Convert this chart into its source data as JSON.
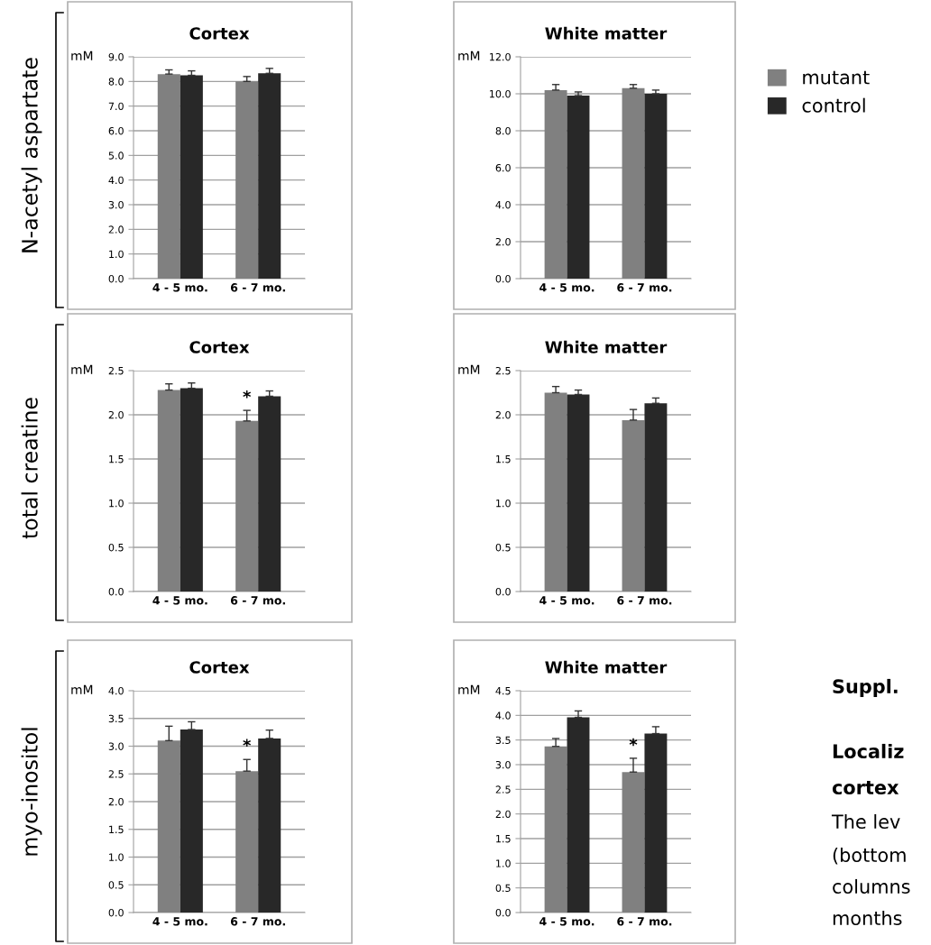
{
  "chart_data": [
    {
      "type": "bar",
      "title": "Cortex",
      "ylabel": "mM",
      "categories": [
        "4 - 5 mo.",
        "6 - 7 mo."
      ],
      "ylim": [
        0,
        9
      ],
      "yticks": [
        {
          "value": 0,
          "label": "0.0"
        },
        {
          "value": 1,
          "label": "1.0"
        },
        {
          "value": 2,
          "label": "2.0"
        },
        {
          "value": 3,
          "label": "3.0"
        },
        {
          "value": 4,
          "label": "4.0"
        },
        {
          "value": 5,
          "label": "5.0"
        },
        {
          "value": 6,
          "label": "6.0"
        },
        {
          "value": 7,
          "label": "7.0"
        },
        {
          "value": 8,
          "label": "8.0"
        },
        {
          "value": 9,
          "label": "9.0"
        }
      ],
      "grid": "y",
      "annotations": [
        "N-acetyl aspartate"
      ],
      "series": [
        {
          "color": "#808080",
          "values": [
            8.3,
            8.0
          ],
          "errors": [
            0.17,
            0.2
          ]
        },
        {
          "color": "#282828",
          "values": [
            8.25,
            8.33
          ],
          "errors": [
            0.18,
            0.2
          ]
        }
      ]
    },
    {
      "type": "bar",
      "title": "White matter",
      "ylabel": "mM",
      "categories": [
        "4 - 5 mo.",
        "6 - 7 mo."
      ],
      "ylim": [
        0,
        12
      ],
      "yticks": [
        {
          "value": 0,
          "label": "0.0"
        },
        {
          "value": 2,
          "label": "2.0"
        },
        {
          "value": 4,
          "label": "4.0"
        },
        {
          "value": 6,
          "label": "6.0"
        },
        {
          "value": 8,
          "label": "8.0"
        },
        {
          "value": 10,
          "label": "10.0"
        },
        {
          "value": 12,
          "label": "12.0"
        }
      ],
      "grid": "y",
      "legend": "right",
      "series": [
        {
          "name": "mutant",
          "color": "#808080",
          "values": [
            10.2,
            10.3
          ],
          "errors": [
            0.3,
            0.2
          ]
        },
        {
          "name": "control",
          "color": "#282828",
          "values": [
            9.9,
            10.0
          ],
          "errors": [
            0.2,
            0.2
          ]
        }
      ]
    },
    {
      "type": "bar",
      "title": "Cortex",
      "ylabel": "mM",
      "categories": [
        "4 - 5 mo.",
        "6 - 7 mo."
      ],
      "ylim": [
        0,
        2.5
      ],
      "yticks": [
        {
          "value": 0,
          "label": "0.0"
        },
        0.5,
        {
          "value": 1,
          "label": "1.0"
        },
        1.5,
        {
          "value": 2,
          "label": "2.0"
        },
        2.5
      ],
      "grid": "y",
      "annotations": [
        "total creatine",
        {
          "text": "*",
          "x": "6 - 7 mo.",
          "y": 2.1
        }
      ],
      "series": [
        {
          "color": "#808080",
          "values": [
            2.28,
            1.93
          ],
          "errors": [
            0.07,
            0.12
          ]
        },
        {
          "color": "#282828",
          "values": [
            2.3,
            2.21
          ],
          "errors": [
            0.06,
            0.06
          ]
        }
      ]
    },
    {
      "type": "bar",
      "title": "White matter",
      "ylabel": "mM",
      "categories": [
        "4 - 5 mo.",
        "6 - 7 mo."
      ],
      "ylim": [
        0,
        2.5
      ],
      "yticks": [
        {
          "value": 0,
          "label": "0.0"
        },
        0.5,
        {
          "value": 1,
          "label": "1.0"
        },
        1.5,
        {
          "value": 2,
          "label": "2.0"
        },
        2.5
      ],
      "grid": "y",
      "series": [
        {
          "color": "#808080",
          "values": [
            2.25,
            1.94
          ],
          "errors": [
            0.07,
            0.12
          ]
        },
        {
          "color": "#282828",
          "values": [
            2.23,
            2.13
          ],
          "errors": [
            0.05,
            0.06
          ]
        }
      ]
    },
    {
      "type": "bar",
      "title": "Cortex",
      "ylabel": "mM",
      "categories": [
        "4 - 5 mo.",
        "6 - 7 mo."
      ],
      "ylim": [
        0,
        4
      ],
      "yticks": [
        {
          "value": 0,
          "label": "0.0"
        },
        0.5,
        {
          "value": 1,
          "label": "1.0"
        },
        1.5,
        {
          "value": 2,
          "label": "2.0"
        },
        2.5,
        {
          "value": 3,
          "label": "3.0"
        },
        3.5,
        {
          "value": 4,
          "label": "4.0"
        }
      ],
      "grid": "y",
      "annotations": [
        "myo-inositol",
        {
          "text": "*",
          "x": "6 - 7 mo.",
          "y": 2.85
        }
      ],
      "series": [
        {
          "color": "#808080",
          "values": [
            3.1,
            2.55
          ],
          "errors": [
            0.26,
            0.21
          ]
        },
        {
          "color": "#282828",
          "values": [
            3.3,
            3.14
          ],
          "errors": [
            0.14,
            0.15
          ]
        }
      ]
    },
    {
      "type": "bar",
      "title": "White matter",
      "ylabel": "mM",
      "categories": [
        "4 - 5 mo.",
        "6 - 7 mo."
      ],
      "ylim": [
        0,
        4.5
      ],
      "yticks": [
        {
          "value": 0,
          "label": "0.0"
        },
        0.5,
        {
          "value": 1,
          "label": "1.0"
        },
        1.5,
        {
          "value": 2,
          "label": "2.0"
        },
        2.5,
        {
          "value": 3,
          "label": "3.0"
        },
        3.5,
        {
          "value": 4,
          "label": "4.0"
        },
        4.5
      ],
      "grid": "y",
      "annotations": [
        {
          "text": "*",
          "x": "6 - 7 mo.",
          "y": 3.22
        }
      ],
      "series": [
        {
          "color": "#808080",
          "values": [
            3.37,
            2.85
          ],
          "errors": [
            0.16,
            0.28
          ]
        },
        {
          "color": "#282828",
          "values": [
            3.96,
            3.63
          ],
          "errors": [
            0.13,
            0.14
          ]
        }
      ]
    },
    {
      "type": "other",
      "annotations": [
        "Suppl.",
        "Localiz",
        "cortex",
        "The lev",
        "(bottom",
        "columns",
        "months"
      ]
    }
  ]
}
